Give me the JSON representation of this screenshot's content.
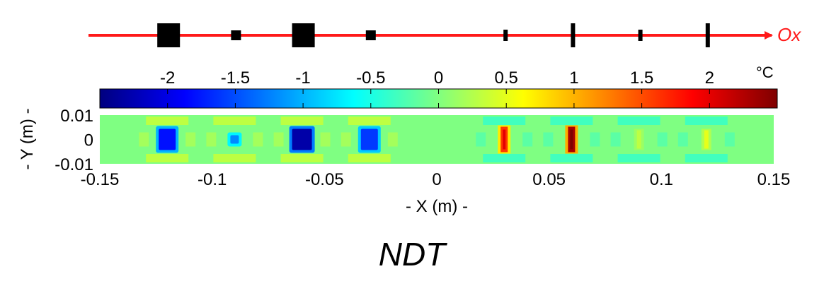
{
  "axis_name": "Ox",
  "colorbar": {
    "unit": "°C",
    "tick_labels": [
      "-2",
      "-1.5",
      "-1",
      "-0.5",
      "0",
      "0.5",
      "1",
      "1.5",
      "2"
    ],
    "range": [
      -2.5,
      2.5
    ],
    "stops": [
      "#00007f",
      "#0000ff",
      "#0080ff",
      "#00ffff",
      "#80ff80",
      "#ffff00",
      "#ff8000",
      "#ff0000",
      "#7f0000"
    ]
  },
  "specimen_defects": [
    {
      "x": -0.12,
      "size": "large"
    },
    {
      "x": -0.09,
      "size": "small"
    },
    {
      "x": -0.06,
      "size": "large"
    },
    {
      "x": -0.03,
      "size": "small"
    },
    {
      "x": 0.03,
      "size": "thin"
    },
    {
      "x": 0.06,
      "size": "thin-tall"
    },
    {
      "x": 0.09,
      "size": "thin"
    },
    {
      "x": 0.12,
      "size": "thin-tall"
    }
  ],
  "chart_data": {
    "type": "heatmap",
    "xlabel": "- X (m) -",
    "ylabel": "- Y (m) -",
    "xlim": [
      -0.15,
      0.15
    ],
    "ylim": [
      -0.01,
      0.01
    ],
    "x_tick_labels": [
      "-0.15",
      "-0.1",
      "-0.05",
      "0",
      "0.05",
      "0.1",
      "0.15"
    ],
    "y_tick_labels": [
      "0.01",
      "0",
      "-0.01"
    ],
    "background_value": 0,
    "anomalies": [
      {
        "x": -0.12,
        "y": 0,
        "value": -1.8
      },
      {
        "x": -0.09,
        "y": 0,
        "value": -1.2
      },
      {
        "x": -0.06,
        "y": 0,
        "value": -2.3
      },
      {
        "x": -0.03,
        "y": 0,
        "value": -1.6
      },
      {
        "x": 0.03,
        "y": 0,
        "value": 1.6
      },
      {
        "x": 0.06,
        "y": 0,
        "value": 2.3
      },
      {
        "x": 0.09,
        "y": 0,
        "value": 0.3
      },
      {
        "x": 0.12,
        "y": 0,
        "value": 0.5
      }
    ]
  },
  "caption": "NDT"
}
